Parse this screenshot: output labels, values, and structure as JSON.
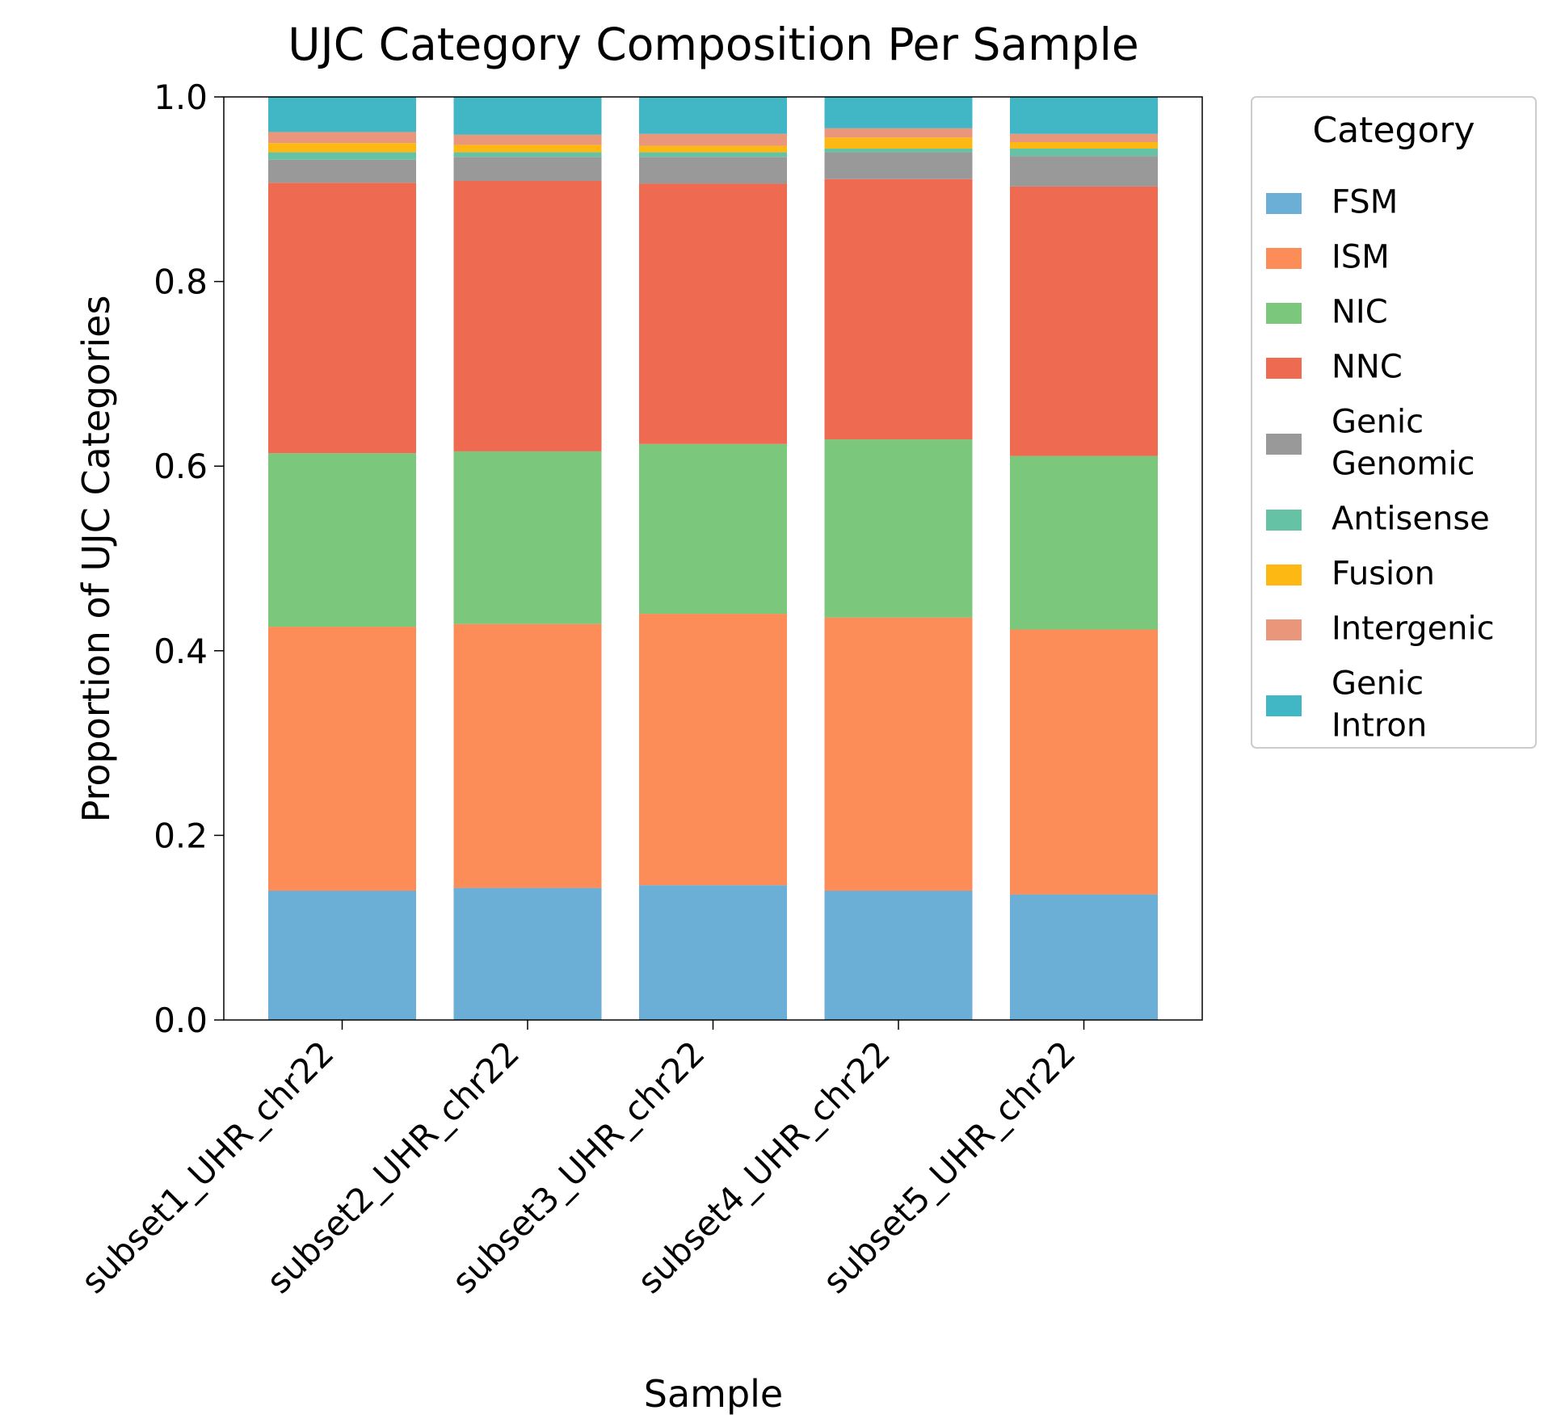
{
  "chart_data": {
    "type": "bar",
    "stacked": true,
    "title": "UJC Category Composition Per Sample",
    "xlabel": "Sample",
    "ylabel": "Proportion of UJC Categories",
    "ylim": [
      0,
      1.0
    ],
    "yticks": [
      "0.0",
      "0.2",
      "0.4",
      "0.6",
      "0.8",
      "1.0"
    ],
    "grid": false,
    "legend_position": "outside-right",
    "legend_title": "Category",
    "categories": [
      "subset1_UHR_chr22",
      "subset2_UHR_chr22",
      "subset3_UHR_chr22",
      "subset4_UHR_chr22",
      "subset5_UHR_chr22"
    ],
    "series": [
      {
        "name": "FSM",
        "lines": [
          "FSM"
        ],
        "color": "#6baed6",
        "values": [
          0.14,
          0.143,
          0.146,
          0.14,
          0.136
        ]
      },
      {
        "name": "ISM",
        "lines": [
          "ISM"
        ],
        "color": "#fc8d59",
        "values": [
          0.286,
          0.286,
          0.294,
          0.296,
          0.287
        ]
      },
      {
        "name": "NIC",
        "lines": [
          "NIC"
        ],
        "color": "#7bc77b",
        "values": [
          0.188,
          0.187,
          0.184,
          0.193,
          0.188
        ]
      },
      {
        "name": "NNC",
        "lines": [
          "NNC"
        ],
        "color": "#ee6a50",
        "values": [
          0.293,
          0.293,
          0.282,
          0.282,
          0.292
        ]
      },
      {
        "name": "Genic Genomic",
        "lines": [
          "Genic",
          "Genomic"
        ],
        "color": "#999999",
        "values": [
          0.025,
          0.026,
          0.029,
          0.029,
          0.033
        ]
      },
      {
        "name": "Antisense",
        "lines": [
          "Antisense"
        ],
        "color": "#66c2a5",
        "values": [
          0.008,
          0.005,
          0.005,
          0.004,
          0.008
        ]
      },
      {
        "name": "Fusion",
        "lines": [
          "Fusion"
        ],
        "color": "#fdb813",
        "values": [
          0.01,
          0.008,
          0.007,
          0.012,
          0.007
        ]
      },
      {
        "name": "Intergenic",
        "lines": [
          "Intergenic"
        ],
        "color": "#e9967a",
        "values": [
          0.012,
          0.011,
          0.013,
          0.01,
          0.009
        ]
      },
      {
        "name": "Genic Intron",
        "lines": [
          "Genic",
          "Intron"
        ],
        "color": "#41b6c4",
        "values": [
          0.038,
          0.041,
          0.04,
          0.034,
          0.04
        ]
      }
    ]
  }
}
